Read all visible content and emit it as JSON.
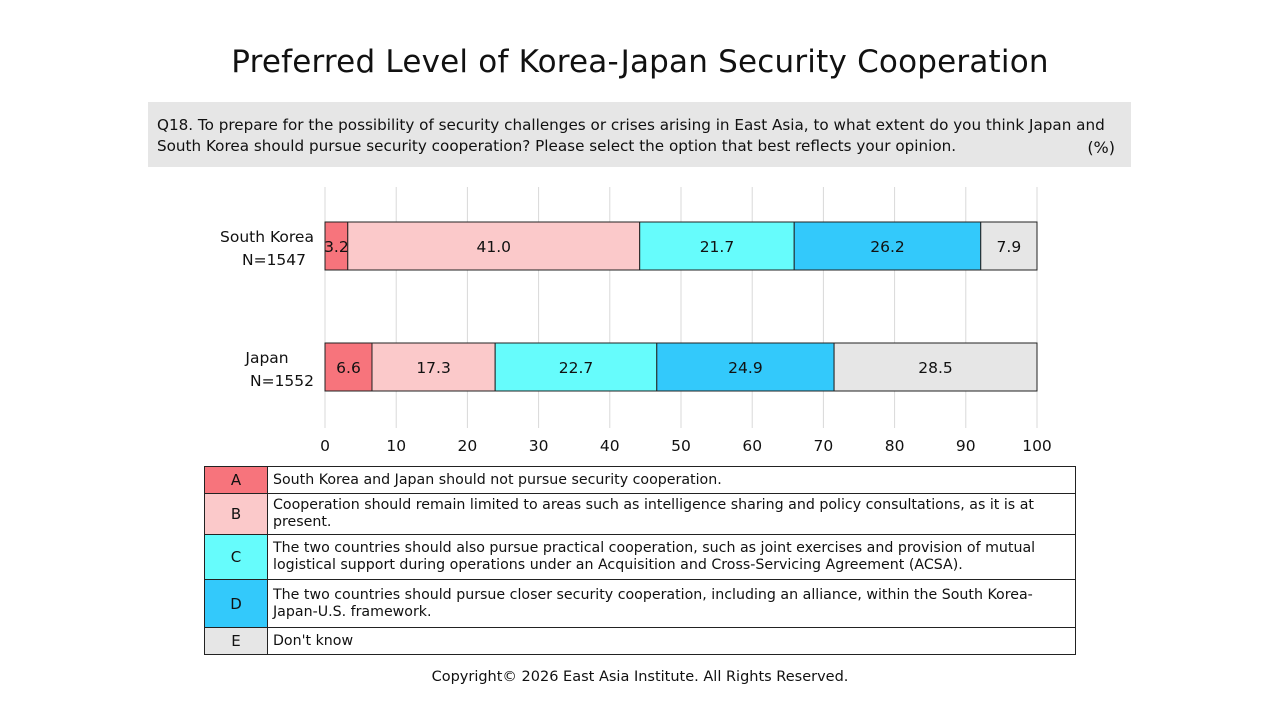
{
  "title": "Preferred Level of Korea-Japan Security Cooperation",
  "question": "Q18. To prepare for the possibility of security challenges or crises arising in East Asia, to what extent do you think Japan and South Korea should pursue security cooperation? Please select the option that best reflects your opinion.",
  "unit": "(%)",
  "chart_data": {
    "type": "bar",
    "orientation": "horizontal",
    "stacked": true,
    "categories": [
      {
        "label": "South Korea",
        "sublabel": "N=1547"
      },
      {
        "label": "Japan",
        "sublabel": "N=1552"
      }
    ],
    "series": [
      {
        "name": "A",
        "color": "#f7747c",
        "values": [
          3.2,
          6.6
        ]
      },
      {
        "name": "B",
        "color": "#fbc9ca",
        "values": [
          41.0,
          17.3
        ]
      },
      {
        "name": "C",
        "color": "#66fcfc",
        "values": [
          21.7,
          22.7
        ]
      },
      {
        "name": "D",
        "color": "#33c9fb",
        "values": [
          26.2,
          24.9
        ]
      },
      {
        "name": "E",
        "color": "#e6e6e6",
        "values": [
          7.9,
          28.5
        ]
      }
    ],
    "xlim": [
      0,
      100
    ],
    "xticks": [
      0,
      10,
      20,
      30,
      40,
      50,
      60,
      70,
      80,
      90,
      100
    ],
    "grid": true
  },
  "legend": [
    {
      "code": "A",
      "color": "#f7747c",
      "text": "South Korea and Japan should not pursue security cooperation."
    },
    {
      "code": "B",
      "color": "#fbc9ca",
      "text": "Cooperation should remain limited to areas such as intelligence sharing and policy consultations, as it is at present."
    },
    {
      "code": "C",
      "color": "#66fcfc",
      "text": "The two countries should also pursue practical cooperation, such as joint exercises and provision of mutual logistical support during operations under an Acquisition and Cross-Servicing Agreement (ACSA)."
    },
    {
      "code": "D",
      "color": "#33c9fb",
      "text": "The two countries should pursue closer security cooperation, including an alliance, within the South Korea-Japan-U.S. framework."
    },
    {
      "code": "E",
      "color": "#e6e6e6",
      "text": "Don't know"
    }
  ],
  "footer": "Copyright© 2026 East Asia Institute. All Rights Reserved."
}
